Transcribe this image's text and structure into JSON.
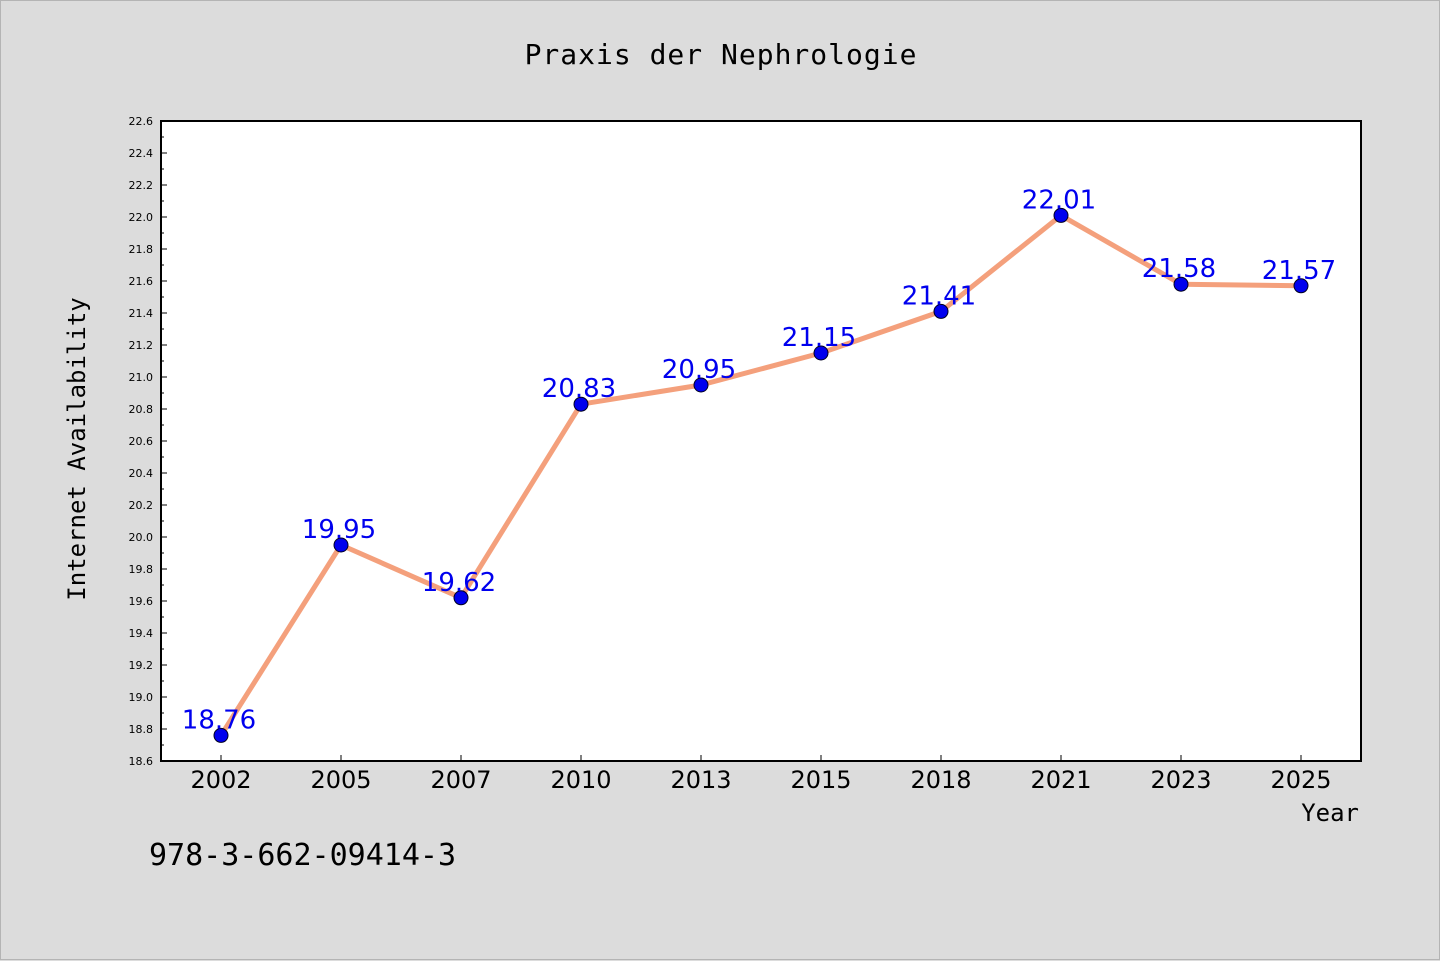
{
  "chart_data": {
    "type": "line",
    "title": "Praxis der Nephrologie",
    "xlabel": "Year",
    "ylabel": "Internet Availability",
    "categories": [
      "2002",
      "2005",
      "2007",
      "2010",
      "2013",
      "2015",
      "2018",
      "2021",
      "2023",
      "2025"
    ],
    "series": [
      {
        "values": [
          18.76,
          19.95,
          19.62,
          20.83,
          20.95,
          21.15,
          21.41,
          22.01,
          21.58,
          21.57
        ]
      }
    ],
    "data_labels": [
      "18.76",
      "19.95",
      "19.62",
      "20.83",
      "20.95",
      "21.15",
      "21.41",
      "22.01",
      "21.58",
      "21.57"
    ],
    "ylim": [
      18.6,
      22.6
    ],
    "yticks": [
      "18.6",
      "18.8",
      "19.0",
      "19.2",
      "19.4",
      "19.6",
      "19.8",
      "20.0",
      "20.2",
      "20.4",
      "20.6",
      "20.8",
      "21.0",
      "21.2",
      "21.4",
      "21.6",
      "21.8",
      "22.0",
      "22.2",
      "22.4",
      "22.6"
    ],
    "grid": false,
    "line_color": "#f4a07c",
    "marker_color": "#0000ee",
    "label_color": "#0000ee",
    "plot_background": "#ffffff",
    "page_background": "#dcdcdc"
  },
  "footer": {
    "isbn": "978-3-662-09414-3"
  }
}
